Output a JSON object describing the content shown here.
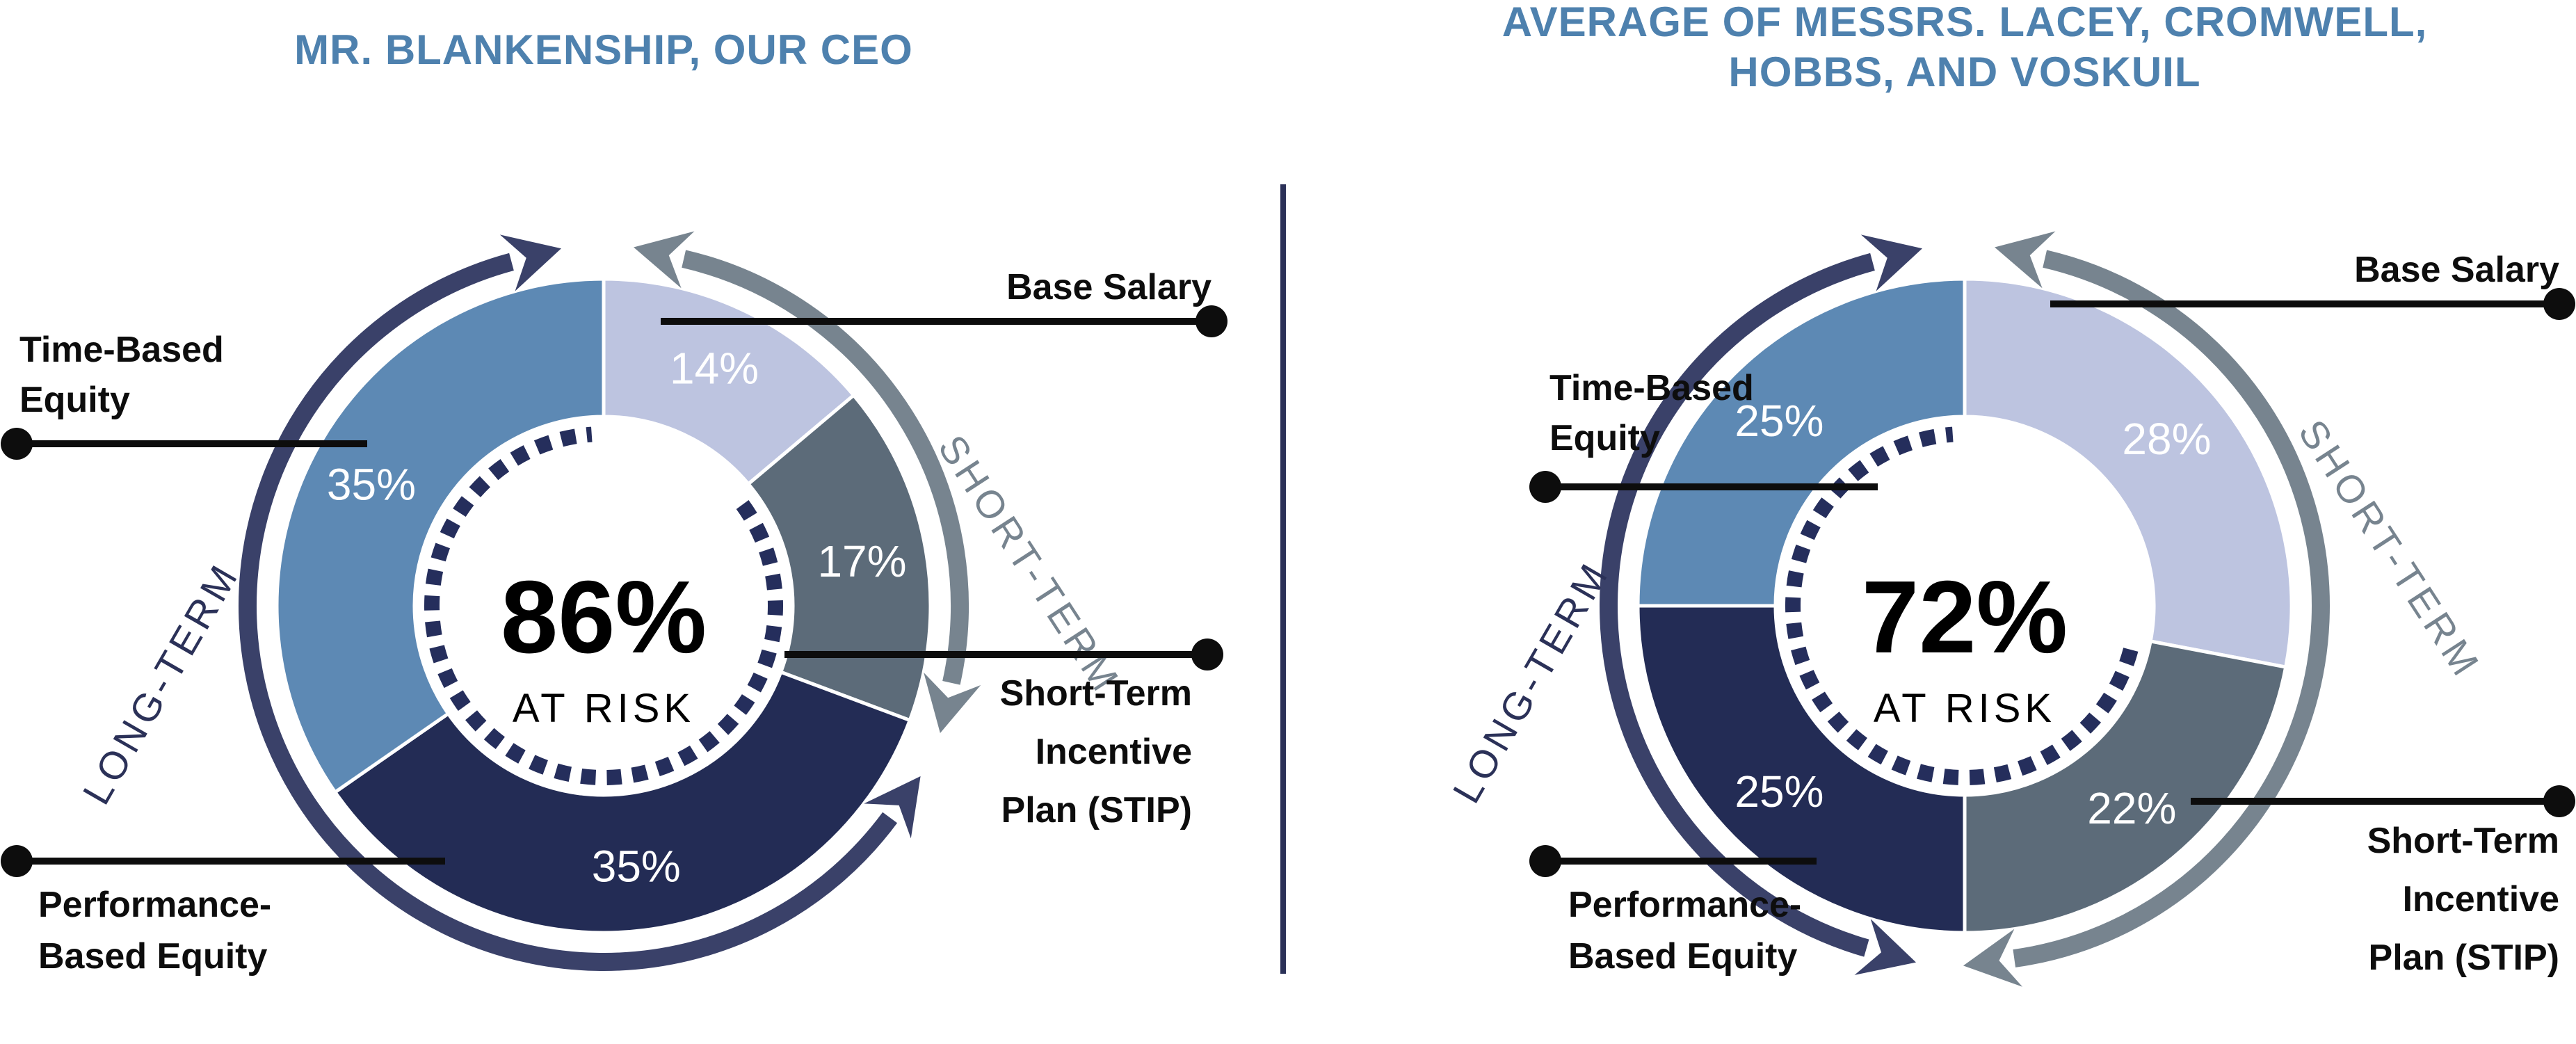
{
  "header": {
    "left_title": "MR. BLANKENSHIP, OUR CEO",
    "right_title_line1": "AVERAGE OF MESSRS. LACEY, CROMWELL,",
    "right_title_line2": "HOBBS, AND VOSKUIL",
    "title_color": "#4e81ae"
  },
  "colors": {
    "base_salary": "#bdc4e0",
    "stip": "#5c6b79",
    "performance_equity": "#232c55",
    "time_equity": "#5d89b4",
    "long_term_arc": "#3a4169",
    "short_term_arc": "#77848f",
    "dotted_ring": "#252e5c",
    "callout_black": "#0d0d0d",
    "divider_navy": "#2b3158",
    "pct_text": "#ffffff"
  },
  "chart_data": [
    {
      "type": "pie",
      "variant": "donut",
      "panel": "left",
      "title": "MR. BLANKENSHIP, OUR CEO",
      "center_value": "86%",
      "center_label": "AT RISK",
      "categories": [
        "Base Salary",
        "Short-Term Incentive Plan (STIP)",
        "Performance-Based Equity",
        "Time-Based Equity"
      ],
      "values": [
        14,
        17,
        35,
        35
      ],
      "segments": [
        {
          "label": "Base Salary",
          "value": 14,
          "pct_label": "14%",
          "color": "#bdc4e0",
          "term": "short"
        },
        {
          "label": "Short-Term Incentive Plan (STIP)",
          "value": 17,
          "pct_label": "17%",
          "color": "#5c6b79",
          "term": "short"
        },
        {
          "label": "Performance-Based Equity",
          "value": 35,
          "pct_label": "35%",
          "color": "#232c55",
          "term": "long"
        },
        {
          "label": "Time-Based Equity",
          "value": 35,
          "pct_label": "35%",
          "color": "#5d89b4",
          "term": "long"
        }
      ],
      "ring_labels": {
        "short_term": "SHORT-TERM",
        "long_term": "LONG-TERM"
      },
      "notes": "dotted inner ring spans only the at-risk (non base salary) portion; clockwise from 12 o'clock"
    },
    {
      "type": "pie",
      "variant": "donut",
      "panel": "right",
      "title": "AVERAGE OF MESSRS. LACEY, CROMWELL, HOBBS, AND VOSKUIL",
      "center_value": "72%",
      "center_label": "AT RISK",
      "categories": [
        "Base Salary",
        "Short-Term Incentive Plan (STIP)",
        "Performance-Based Equity",
        "Time-Based Equity"
      ],
      "values": [
        28,
        22,
        25,
        25
      ],
      "segments": [
        {
          "label": "Base Salary",
          "value": 28,
          "pct_label": "28%",
          "color": "#bdc4e0",
          "term": "short"
        },
        {
          "label": "Short-Term Incentive Plan (STIP)",
          "value": 22,
          "pct_label": "22%",
          "color": "#5c6b79",
          "term": "short"
        },
        {
          "label": "Performance-Based Equity",
          "value": 25,
          "pct_label": "25%",
          "color": "#232c55",
          "term": "long"
        },
        {
          "label": "Time-Based Equity",
          "value": 25,
          "pct_label": "25%",
          "color": "#5d89b4",
          "term": "long"
        }
      ],
      "ring_labels": {
        "short_term": "SHORT-TERM",
        "long_term": "LONG-TERM"
      },
      "notes": "dotted inner ring spans only the at-risk (non base salary) portion; clockwise from 12 o'clock"
    }
  ],
  "callouts": {
    "left": {
      "base_salary": {
        "lines": [
          "Base Salary"
        ]
      },
      "stip": {
        "lines": [
          "Short-Term",
          "Incentive",
          "Plan (STIP)"
        ]
      },
      "performance": {
        "lines": [
          "Performance-",
          "Based Equity"
        ]
      },
      "time_based": {
        "lines": [
          "Time-Based",
          "Equity"
        ]
      }
    },
    "right": {
      "base_salary": {
        "lines": [
          "Base Salary"
        ]
      },
      "stip": {
        "lines": [
          "Short-Term",
          "Incentive",
          "Plan (STIP)"
        ]
      },
      "performance": {
        "lines": [
          "Performance-",
          "Based Equity"
        ]
      },
      "time_based": {
        "lines": [
          "Time-Based",
          "Equity"
        ]
      }
    }
  }
}
